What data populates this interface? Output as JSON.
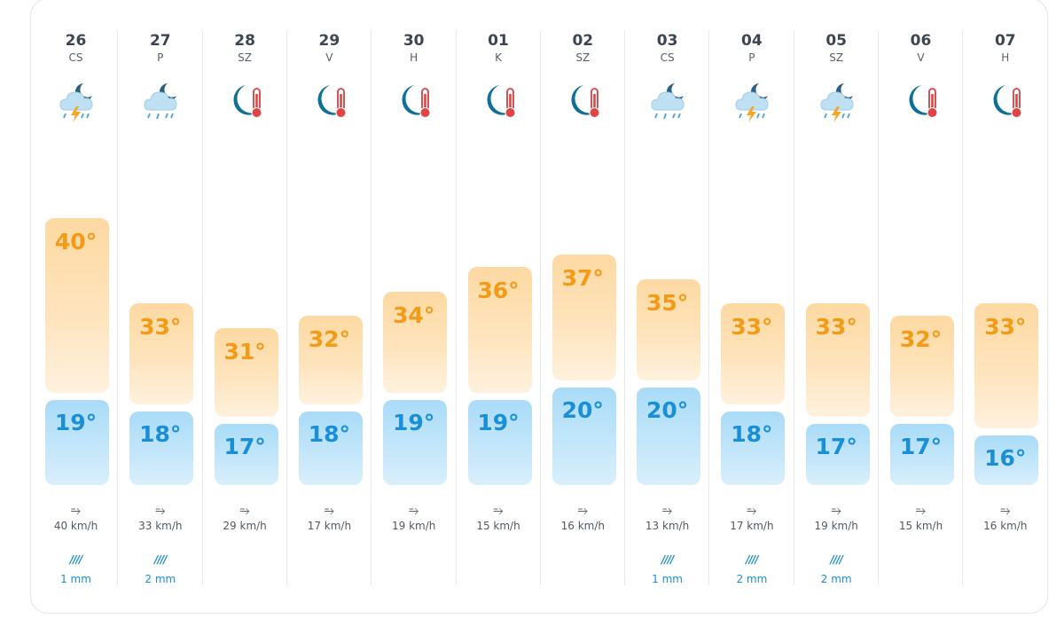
{
  "days": [
    {
      "day": "26",
      "name": "CS",
      "icon": "storm-rain-night-icon",
      "max": "40°",
      "min": "19°",
      "max_val": 40,
      "min_val": 19,
      "wind": "40 km/h",
      "rain": "1 mm"
    },
    {
      "day": "27",
      "name": "P",
      "icon": "rain-night-icon",
      "max": "33°",
      "min": "18°",
      "max_val": 33,
      "min_val": 18,
      "wind": "33 km/h",
      "rain": "2 mm"
    },
    {
      "day": "28",
      "name": "SZ",
      "icon": "clear-night-hot-icon",
      "max": "31°",
      "min": "17°",
      "max_val": 31,
      "min_val": 17,
      "wind": "29 km/h",
      "rain": ""
    },
    {
      "day": "29",
      "name": "V",
      "icon": "clear-night-hot-icon",
      "max": "32°",
      "min": "18°",
      "max_val": 32,
      "min_val": 18,
      "wind": "17 km/h",
      "rain": ""
    },
    {
      "day": "30",
      "name": "H",
      "icon": "clear-night-hot-icon",
      "max": "34°",
      "min": "19°",
      "max_val": 34,
      "min_val": 19,
      "wind": "19 km/h",
      "rain": ""
    },
    {
      "day": "01",
      "name": "K",
      "icon": "clear-night-hot-icon",
      "max": "36°",
      "min": "19°",
      "max_val": 36,
      "min_val": 19,
      "wind": "15 km/h",
      "rain": ""
    },
    {
      "day": "02",
      "name": "SZ",
      "icon": "clear-night-hot-icon",
      "max": "37°",
      "min": "20°",
      "max_val": 37,
      "min_val": 20,
      "wind": "16 km/h",
      "rain": ""
    },
    {
      "day": "03",
      "name": "CS",
      "icon": "rain-night-icon",
      "max": "35°",
      "min": "20°",
      "max_val": 35,
      "min_val": 20,
      "wind": "13 km/h",
      "rain": "1 mm"
    },
    {
      "day": "04",
      "name": "P",
      "icon": "storm-rain-night-icon",
      "max": "33°",
      "min": "18°",
      "max_val": 33,
      "min_val": 18,
      "wind": "17 km/h",
      "rain": "2 mm"
    },
    {
      "day": "05",
      "name": "SZ",
      "icon": "storm-rain-night-icon",
      "max": "33°",
      "min": "17°",
      "max_val": 33,
      "min_val": 17,
      "wind": "19 km/h",
      "rain": "2 mm"
    },
    {
      "day": "06",
      "name": "V",
      "icon": "clear-night-hot-icon",
      "max": "32°",
      "min": "17°",
      "max_val": 32,
      "min_val": 17,
      "wind": "15 km/h",
      "rain": ""
    },
    {
      "day": "07",
      "name": "H",
      "icon": "clear-night-hot-icon",
      "max": "33°",
      "min": "16°",
      "max_val": 33,
      "min_val": 16,
      "wind": "16 km/h",
      "rain": ""
    }
  ],
  "colors": {
    "max": "#f39a16",
    "min": "#1a8fd6",
    "wind_icon": "#5d6670",
    "rain": "#1a8fd6"
  },
  "glyphs": {
    "wind": "⥱",
    "rain": "////"
  }
}
